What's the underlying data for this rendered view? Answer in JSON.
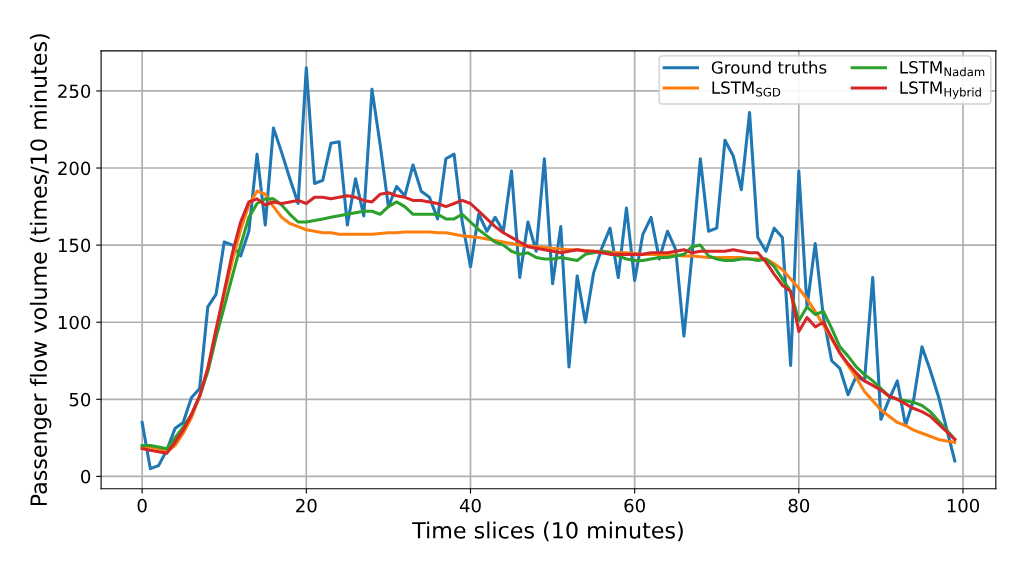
{
  "chart_data": {
    "type": "line",
    "xlabel": "Time slices (10 minutes)",
    "ylabel": "Passenger flow volume (times/10 minutes)",
    "xlim": [
      -5,
      104
    ],
    "ylim": [
      -8,
      276
    ],
    "xticks": [
      0,
      20,
      40,
      60,
      80,
      100
    ],
    "yticks": [
      0,
      50,
      100,
      150,
      200,
      250
    ],
    "grid": true,
    "legend": "top right",
    "line_style": "solid",
    "marker": "none",
    "series": [
      {
        "name": "Ground truths",
        "color": "#1f77b4",
        "x": [
          0,
          1,
          2,
          3,
          4,
          5,
          6,
          7,
          8,
          9,
          10,
          11,
          12,
          13,
          14,
          15,
          16,
          17,
          18,
          19,
          20,
          21,
          22,
          23,
          24,
          25,
          26,
          27,
          28,
          29,
          30,
          31,
          32,
          33,
          34,
          35,
          36,
          37,
          38,
          39,
          40,
          41,
          42,
          43,
          44,
          45,
          46,
          47,
          48,
          49,
          50,
          51,
          52,
          53,
          54,
          55,
          56,
          57,
          58,
          59,
          60,
          61,
          62,
          63,
          64,
          65,
          66,
          67,
          68,
          69,
          70,
          71,
          72,
          73,
          74,
          75,
          76,
          77,
          78,
          79,
          80,
          81,
          82,
          83,
          84,
          85,
          86,
          87,
          88,
          89,
          90,
          91,
          92,
          93,
          94,
          95,
          96,
          97,
          98,
          99
        ],
        "values": [
          35,
          5,
          7,
          17,
          31,
          35,
          51,
          57,
          110,
          118,
          152,
          150,
          143,
          159,
          209,
          163,
          226,
          210,
          193,
          177,
          265,
          190,
          192,
          216,
          217,
          163,
          193,
          169,
          251,
          215,
          175,
          188,
          182,
          202,
          185,
          181,
          167,
          206,
          209,
          165,
          136,
          170,
          159,
          168,
          159,
          198,
          129,
          165,
          146,
          206,
          125,
          162,
          71,
          130,
          100,
          132,
          148,
          161,
          129,
          174,
          127,
          157,
          168,
          141,
          159,
          147,
          91,
          144,
          206,
          159,
          161,
          218,
          208,
          186,
          236,
          155,
          146,
          161,
          155,
          72,
          198,
          110,
          151,
          103,
          75,
          70,
          53,
          65,
          62,
          129,
          37,
          50,
          62,
          33,
          50,
          84,
          69,
          52,
          31,
          10
        ]
      },
      {
        "name": "LSTM$_{SGD}$",
        "color": "#ff7f0e",
        "x": [
          0,
          1,
          2,
          3,
          4,
          5,
          6,
          7,
          8,
          9,
          10,
          11,
          12,
          13,
          14,
          15,
          16,
          17,
          18,
          19,
          20,
          21,
          22,
          23,
          24,
          25,
          26,
          27,
          28,
          29,
          30,
          31,
          32,
          33,
          34,
          35,
          36,
          37,
          38,
          39,
          40,
          41,
          42,
          43,
          44,
          45,
          46,
          47,
          48,
          49,
          50,
          51,
          52,
          53,
          54,
          55,
          56,
          57,
          58,
          59,
          60,
          61,
          62,
          63,
          64,
          65,
          66,
          67,
          68,
          69,
          70,
          71,
          72,
          73,
          74,
          75,
          76,
          77,
          78,
          79,
          80,
          81,
          82,
          83,
          84,
          85,
          86,
          87,
          88,
          89,
          90,
          91,
          92,
          93,
          94,
          95,
          96,
          97,
          98,
          99
        ],
        "values": [
          19,
          19,
          18,
          16,
          20,
          28,
          38,
          52,
          70,
          95,
          118,
          140,
          160,
          176,
          185,
          183,
          175,
          168,
          164,
          162,
          160,
          159,
          158,
          158,
          157,
          157,
          157,
          157,
          157,
          157.5,
          158,
          158,
          158.5,
          158.5,
          158.5,
          158.5,
          158,
          158,
          157,
          156,
          155.5,
          155,
          154,
          153,
          152,
          151,
          150,
          149.5,
          149,
          148.5,
          148,
          147.5,
          147,
          147,
          146.5,
          146,
          146,
          145.5,
          145,
          145,
          144.5,
          144,
          144,
          144,
          143.5,
          143.5,
          143,
          143,
          142.5,
          142,
          142,
          142,
          142,
          142,
          141,
          141,
          141,
          138,
          134,
          128,
          122,
          115,
          107,
          98,
          89,
          80,
          72,
          64,
          55,
          49,
          43,
          39,
          35,
          33,
          30,
          28,
          26,
          24,
          23,
          22
        ]
      },
      {
        "name": "LSTM$_{Nadam}$",
        "color": "#2ca02c",
        "x": [
          0,
          1,
          2,
          3,
          4,
          5,
          6,
          7,
          8,
          9,
          10,
          11,
          12,
          13,
          14,
          15,
          16,
          17,
          18,
          19,
          20,
          21,
          22,
          23,
          24,
          25,
          26,
          27,
          28,
          29,
          30,
          31,
          32,
          33,
          34,
          35,
          36,
          37,
          38,
          39,
          40,
          41,
          42,
          43,
          44,
          45,
          46,
          47,
          48,
          49,
          50,
          51,
          52,
          53,
          54,
          55,
          56,
          57,
          58,
          59,
          60,
          61,
          62,
          63,
          64,
          65,
          66,
          67,
          68,
          69,
          70,
          71,
          72,
          73,
          74,
          75,
          76,
          77,
          78,
          79,
          80,
          81,
          82,
          83,
          84,
          85,
          86,
          87,
          88,
          89,
          90,
          91,
          92,
          93,
          94,
          95,
          96,
          97,
          98,
          99
        ],
        "values": [
          20,
          20,
          19,
          18,
          25,
          32,
          40,
          52,
          68,
          90,
          110,
          130,
          150,
          168,
          177,
          180,
          180,
          176,
          170,
          165,
          165,
          166,
          167,
          168,
          169,
          170,
          171,
          172,
          172,
          170,
          175,
          178,
          175,
          170,
          170,
          170,
          170,
          167,
          167,
          170,
          165,
          160,
          156,
          152,
          150,
          146,
          144,
          145,
          142,
          141,
          141,
          142,
          141,
          140,
          144,
          145,
          146,
          145,
          143,
          141,
          140,
          140,
          141,
          142,
          142,
          143,
          144,
          149,
          150,
          143,
          141,
          140,
          140,
          141,
          141,
          140,
          141,
          136,
          128,
          120,
          101,
          110,
          105,
          107,
          96,
          84,
          78,
          71,
          66,
          62,
          57,
          52,
          50,
          49,
          48,
          46,
          42,
          36,
          30,
          24
        ]
      },
      {
        "name": "LSTM$_{Hybrid}$",
        "color": "#d62728",
        "x": [
          0,
          1,
          2,
          3,
          4,
          5,
          6,
          7,
          8,
          9,
          10,
          11,
          12,
          13,
          14,
          15,
          16,
          17,
          18,
          19,
          20,
          21,
          22,
          23,
          24,
          25,
          26,
          27,
          28,
          29,
          30,
          31,
          32,
          33,
          34,
          35,
          36,
          37,
          38,
          39,
          40,
          41,
          42,
          43,
          44,
          45,
          46,
          47,
          48,
          49,
          50,
          51,
          52,
          53,
          54,
          55,
          56,
          57,
          58,
          59,
          60,
          61,
          62,
          63,
          64,
          65,
          66,
          67,
          68,
          69,
          70,
          71,
          72,
          73,
          74,
          75,
          76,
          77,
          78,
          79,
          80,
          81,
          82,
          83,
          84,
          85,
          86,
          87,
          88,
          89,
          90,
          91,
          92,
          93,
          94,
          95,
          96,
          97,
          98,
          99
        ],
        "values": [
          18,
          17,
          16,
          15,
          22,
          30,
          40,
          52,
          70,
          95,
          120,
          145,
          165,
          178,
          180,
          176,
          178,
          177,
          178,
          179,
          177,
          181,
          181,
          180,
          181,
          182,
          181,
          179,
          178,
          183,
          184,
          182,
          181,
          179,
          179,
          178,
          177,
          175,
          177,
          179,
          177,
          172,
          167,
          162,
          158,
          155,
          152,
          149,
          148,
          147,
          146,
          145,
          146,
          147,
          146,
          146,
          145,
          144,
          144,
          144,
          144,
          144,
          145,
          145,
          145,
          146,
          147,
          145,
          146,
          146,
          146,
          146,
          147,
          146,
          145,
          145,
          139,
          131,
          124,
          120,
          94,
          103,
          97,
          100,
          90,
          80,
          73,
          67,
          62,
          59,
          56,
          52,
          50,
          47,
          44,
          42,
          39,
          34,
          29,
          24
        ]
      }
    ]
  }
}
